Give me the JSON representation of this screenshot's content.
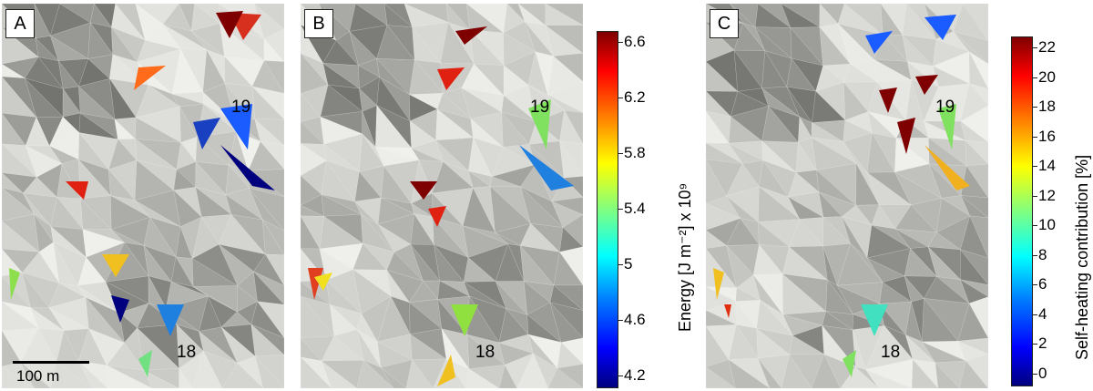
{
  "panels": [
    {
      "letter": "A",
      "label_19": "19",
      "label_18": "18",
      "scale_text": "100 m"
    },
    {
      "letter": "B",
      "label_19": "19",
      "label_18": "18"
    },
    {
      "letter": "C",
      "label_19": "19",
      "label_18": "18"
    }
  ],
  "colorbar_energy": {
    "title": "Energy [J m⁻²] x 10⁹",
    "ticks": [
      "6.6",
      "6.2",
      "5.8",
      "5.4",
      "5",
      "4.6",
      "4.2"
    ],
    "range": [
      4.0,
      6.8
    ],
    "colormap": "jet"
  },
  "colorbar_self_heating": {
    "title": "Self-heating contribution [%]",
    "ticks": [
      "22",
      "20",
      "18",
      "16",
      "14",
      "12",
      "10",
      "8",
      "6",
      "4",
      "2",
      "0"
    ],
    "range": [
      0,
      22
    ],
    "colormap": "jet"
  }
}
